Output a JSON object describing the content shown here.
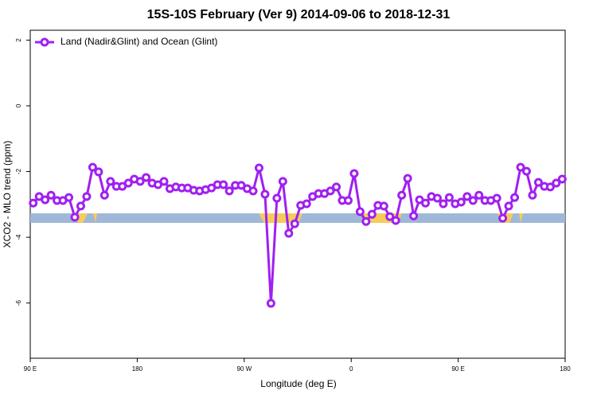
{
  "chart_data": {
    "type": "line",
    "title": "15S-10S February (Ver 9)   2014-09-06 to 2018-12-31",
    "x_label": "Longitude (deg E)",
    "y_label": "XCO2 - MLO trend (ppm)",
    "xlim": [
      90,
      540
    ],
    "xticks": [
      {
        "value": 90,
        "label": "90 E"
      },
      180,
      {
        "value": 270,
        "label": "90 W"
      },
      {
        "value": 360,
        "label": "0"
      },
      {
        "value": 450,
        "label": "90 E"
      },
      {
        "value": 540,
        "label": "180"
      }
    ],
    "ylim": [
      -7.68,
      2.3
    ],
    "yticks": [
      -6,
      -4,
      -2,
      0,
      2
    ],
    "legend": "top-left",
    "x": [
      92.5,
      97.5,
      102.5,
      107.5,
      112.5,
      117.5,
      122.5,
      127.5,
      132.5,
      137.5,
      142.5,
      147.5,
      152.5,
      157.5,
      162.5,
      167.5,
      172.5,
      177.5,
      182.5,
      187.5,
      192.5,
      197.5,
      202.5,
      207.5,
      212.5,
      217.5,
      222.5,
      227.5,
      232.5,
      237.5,
      242.5,
      247.5,
      252.5,
      257.5,
      262.5,
      267.5,
      272.5,
      277.5,
      282.5,
      287.5,
      292.5,
      297.5,
      302.5,
      307.5,
      312.5,
      317.5,
      322.5,
      327.5,
      332.5,
      337.5,
      342.5,
      347.5,
      352.5,
      357.5,
      362.5,
      367.5,
      372.5,
      377.5,
      382.5,
      387.5,
      392.5,
      397.5,
      402.5,
      407.5,
      412.5,
      417.5,
      422.5,
      427.5,
      432.5,
      437.5,
      442.5,
      447.5,
      452.5,
      457.5,
      462.5,
      467.5,
      472.5,
      477.5,
      482.5,
      487.5,
      492.5,
      497.5,
      502.5,
      507.5,
      512.5,
      517.5,
      522.5,
      527.5,
      532.5,
      537.5
    ],
    "series": [
      {
        "name": "Land (Nadir&Glint) and Ocean (Glint)",
        "color": "#a020f0",
        "values": [
          -2.96,
          -2.76,
          -2.86,
          -2.72,
          -2.88,
          -2.88,
          -2.79,
          -3.39,
          -3.05,
          -2.76,
          -1.87,
          -2.01,
          -2.72,
          -2.3,
          -2.45,
          -2.45,
          -2.35,
          -2.23,
          -2.3,
          -2.18,
          -2.35,
          -2.4,
          -2.3,
          -2.52,
          -2.47,
          -2.5,
          -2.5,
          -2.57,
          -2.59,
          -2.55,
          -2.5,
          -2.4,
          -2.4,
          -2.59,
          -2.42,
          -2.42,
          -2.52,
          -2.59,
          -1.89,
          -2.69,
          -6.01,
          -2.81,
          -2.3,
          -3.88,
          -3.59,
          -3.03,
          -2.98,
          -2.76,
          -2.67,
          -2.67,
          -2.59,
          -2.47,
          -2.88,
          -2.88,
          -2.06,
          -3.22,
          -3.52,
          -3.3,
          -3.03,
          -3.05,
          -3.37,
          -3.49,
          -2.72,
          -2.21,
          -3.35,
          -2.86,
          -2.96,
          -2.76,
          -2.81,
          -2.98,
          -2.79,
          -2.98,
          -2.93,
          -2.76,
          -2.88,
          -2.72,
          -2.88,
          -2.88,
          -2.81,
          -3.42,
          -3.05,
          -2.79,
          -1.87,
          -1.99,
          -2.72,
          -2.33,
          -2.45,
          -2.47,
          -2.35,
          -2.23
        ]
      }
    ]
  }
}
